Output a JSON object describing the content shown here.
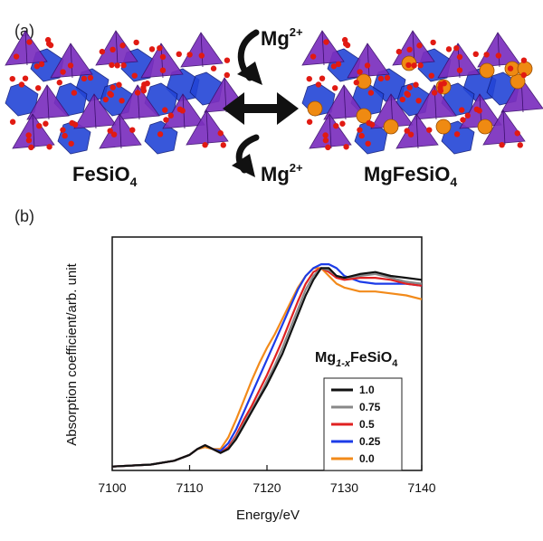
{
  "panel_a": {
    "label": "(a)",
    "left_formula": {
      "main": "FeSiO",
      "sub": "4"
    },
    "right_formula": {
      "main": "MgFeSiO",
      "sub": "4"
    },
    "ion_top": {
      "main": "Mg",
      "sup": "2+"
    },
    "ion_bottom": {
      "main": "Mg",
      "sup": "2+"
    },
    "colors": {
      "tetrahedra": "#7b2fbe",
      "octahedra": "#2345d6",
      "oxygen": "#e11a12",
      "magnesium": "#ef8a12"
    },
    "icons": [
      "crystal-structure-feSiO4",
      "crystal-structure-mgFeSiO4",
      "double-arrow-icon",
      "curved-arrow-down-icon",
      "curved-arrow-down-icon"
    ]
  },
  "panel_b": {
    "label": "(b)",
    "chart_data": {
      "type": "line",
      "title": "",
      "xlabel": "Energy/eV",
      "ylabel": "Absorption coefficient/arb. unit",
      "xlim": [
        7100,
        7140
      ],
      "ylim": [
        0,
        1.2
      ],
      "xticks": [
        7100,
        7110,
        7120,
        7130,
        7140
      ],
      "y_tick_labels_shown": false,
      "grid": false,
      "legend": {
        "placement": "right",
        "title_parts": [
          {
            "text": "Mg",
            "style": "normal"
          },
          {
            "text": "1-x",
            "style": "sub-italic"
          },
          {
            "text": "FeSiO",
            "style": "normal"
          },
          {
            "text": "4",
            "style": "sub"
          }
        ]
      },
      "series": [
        {
          "name": "1.0",
          "color": "#111111",
          "x": [
            7100,
            7105,
            7108,
            7110,
            7111,
            7112,
            7113,
            7114,
            7115,
            7116,
            7117,
            7118,
            7119,
            7120,
            7121,
            7122,
            7123,
            7124,
            7125,
            7126,
            7127,
            7128,
            7129,
            7130,
            7132,
            7134,
            7136,
            7138,
            7140
          ],
          "y": [
            0.02,
            0.03,
            0.05,
            0.08,
            0.11,
            0.13,
            0.11,
            0.09,
            0.11,
            0.16,
            0.23,
            0.3,
            0.37,
            0.44,
            0.52,
            0.6,
            0.7,
            0.8,
            0.9,
            0.98,
            1.04,
            1.04,
            1.0,
            0.99,
            1.01,
            1.02,
            1.0,
            0.99,
            0.98
          ]
        },
        {
          "name": "0.75",
          "color": "#888888",
          "x": [
            7100,
            7105,
            7108,
            7110,
            7111,
            7112,
            7113,
            7114,
            7115,
            7116,
            7117,
            7118,
            7119,
            7120,
            7121,
            7122,
            7123,
            7124,
            7125,
            7126,
            7127,
            7128,
            7129,
            7130,
            7132,
            7134,
            7136,
            7138,
            7140
          ],
          "y": [
            0.02,
            0.03,
            0.05,
            0.08,
            0.11,
            0.13,
            0.11,
            0.09,
            0.11,
            0.17,
            0.24,
            0.31,
            0.38,
            0.46,
            0.54,
            0.63,
            0.73,
            0.83,
            0.93,
            1.0,
            1.04,
            1.03,
            1.0,
            0.99,
            1.0,
            1.01,
            0.99,
            0.97,
            0.96
          ]
        },
        {
          "name": "0.5",
          "color": "#e02020",
          "x": [
            7100,
            7105,
            7108,
            7110,
            7111,
            7112,
            7113,
            7114,
            7115,
            7116,
            7117,
            7118,
            7119,
            7120,
            7121,
            7122,
            7123,
            7124,
            7125,
            7126,
            7127,
            7128,
            7129,
            7130,
            7132,
            7134,
            7136,
            7138,
            7140
          ],
          "y": [
            0.02,
            0.03,
            0.05,
            0.08,
            0.11,
            0.13,
            0.11,
            0.09,
            0.12,
            0.18,
            0.26,
            0.33,
            0.41,
            0.49,
            0.58,
            0.67,
            0.77,
            0.87,
            0.96,
            1.02,
            1.04,
            1.02,
            0.99,
            0.98,
            0.99,
            0.99,
            0.98,
            0.96,
            0.95
          ]
        },
        {
          "name": "0.25",
          "color": "#1c3ce8",
          "x": [
            7100,
            7105,
            7108,
            7110,
            7111,
            7112,
            7113,
            7114,
            7115,
            7116,
            7117,
            7118,
            7119,
            7120,
            7121,
            7122,
            7123,
            7124,
            7125,
            7126,
            7127,
            7128,
            7129,
            7130,
            7132,
            7134,
            7136,
            7138,
            7140
          ],
          "y": [
            0.02,
            0.03,
            0.05,
            0.08,
            0.11,
            0.13,
            0.11,
            0.1,
            0.14,
            0.21,
            0.3,
            0.39,
            0.48,
            0.57,
            0.66,
            0.75,
            0.84,
            0.93,
            1.0,
            1.04,
            1.06,
            1.06,
            1.04,
            1.0,
            0.97,
            0.96,
            0.96,
            0.96,
            0.95
          ]
        },
        {
          "name": "0.0",
          "color": "#f28a1a",
          "x": [
            7100,
            7105,
            7108,
            7110,
            7111,
            7112,
            7113,
            7114,
            7115,
            7116,
            7117,
            7118,
            7119,
            7120,
            7121,
            7122,
            7123,
            7124,
            7125,
            7126,
            7127,
            7128,
            7129,
            7130,
            7132,
            7134,
            7136,
            7138,
            7140
          ],
          "y": [
            0.02,
            0.03,
            0.05,
            0.08,
            0.11,
            0.12,
            0.11,
            0.11,
            0.17,
            0.26,
            0.36,
            0.46,
            0.55,
            0.63,
            0.7,
            0.78,
            0.86,
            0.94,
            1.0,
            1.04,
            1.04,
            1.0,
            0.96,
            0.94,
            0.92,
            0.92,
            0.91,
            0.9,
            0.88
          ]
        }
      ]
    }
  }
}
